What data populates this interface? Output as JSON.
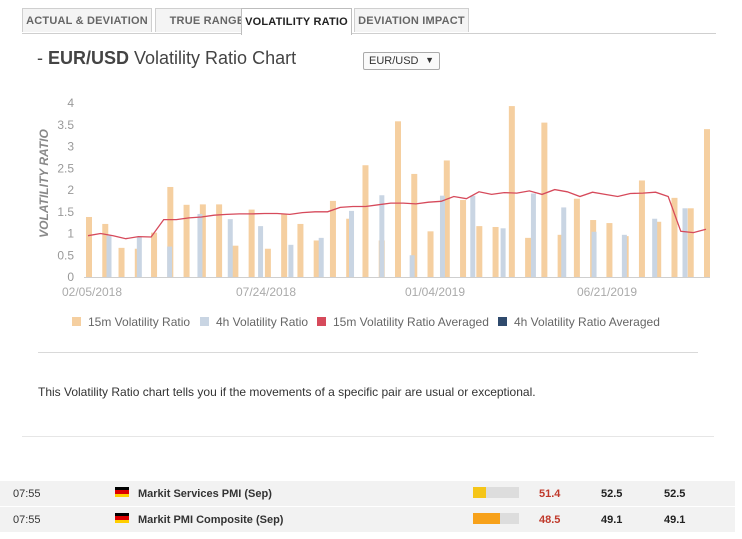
{
  "tabs": [
    {
      "label": "ACTUAL & DEVIATION",
      "active": false
    },
    {
      "label": "TRUE RANGE",
      "active": false
    },
    {
      "label": "VOLATILITY RATIO",
      "active": true
    },
    {
      "label": "DEVIATION IMPACT",
      "active": false
    }
  ],
  "header": {
    "prefix": "- ",
    "pair": "EUR/USD",
    "title_suffix": " Volatility Ratio Chart",
    "pair_select": "EUR/USD",
    "caret": "▼"
  },
  "description": "This Volatility Ratio chart tells you if the movements of a specific pair are usual or exceptional.",
  "chart_data": {
    "type": "bar",
    "ylabel": "VOLATILITY RATIO",
    "ylim": [
      0,
      4.3
    ],
    "yticks": [
      "0",
      "0.5",
      "1",
      "1.5",
      "2",
      "2.5",
      "3",
      "3.5",
      "4"
    ],
    "xtick_labels": [
      "02/05/2018",
      "07/24/2018",
      "01/04/2019",
      "06/21/2019"
    ],
    "legend": [
      {
        "name": "15m Volatility Ratio",
        "color": "#f5cfa0"
      },
      {
        "name": "4h Volatility Ratio",
        "color": "#c9d5e3"
      },
      {
        "name": "15m Volatility Ratio Averaged",
        "color": "#d64a5b"
      },
      {
        "name": "4h Volatility Ratio Averaged",
        "color": "#2f4a6d"
      }
    ],
    "series_15m": [
      1.38,
      1.22,
      0.67,
      0.65,
      1.02,
      2.07,
      1.66,
      1.67,
      1.67,
      0.72,
      1.55,
      0.65,
      1.45,
      1.22,
      0.84,
      1.75,
      1.34,
      2.57,
      0.84,
      3.58,
      2.37,
      1.05,
      2.68,
      1.77,
      1.17,
      1.15,
      3.93,
      0.9,
      3.55,
      0.97,
      1.8,
      1.31,
      1.24,
      0.94,
      2.22,
      1.27,
      1.82,
      1.58,
      3.4
    ],
    "series_4h": [
      0.95,
      0.93,
      0.7,
      1.45,
      1.33,
      1.17,
      0.74,
      0.9,
      1.52,
      1.88,
      0.5,
      1.87,
      1.87,
      1.12,
      1.92,
      1.6,
      1.04,
      0.97,
      1.34,
      1.58
    ],
    "series_avg": [
      0.95,
      1.0,
      0.95,
      0.88,
      0.93,
      0.92,
      1.32,
      1.32,
      1.36,
      1.38,
      1.42,
      1.44,
      1.45,
      1.45,
      1.46,
      1.46,
      1.44,
      1.48,
      1.5,
      1.5,
      1.6,
      1.62,
      1.62,
      1.66,
      1.7,
      1.7,
      1.68,
      1.72,
      1.74,
      1.85,
      1.8,
      1.96,
      1.9,
      1.94,
      1.93,
      1.98,
      1.9,
      2.01,
      1.96,
      1.85,
      1.95,
      1.9,
      1.85,
      1.92,
      1.93,
      1.95,
      1.85,
      1.05,
      1.02,
      1.1
    ]
  },
  "events": [
    {
      "time": "07:55",
      "name": "Markit Services PMI (Sep)",
      "impact": 0.28,
      "impact_color": "#f5c518",
      "actual": "51.4",
      "consensus": "52.5",
      "previous": "52.5"
    },
    {
      "time": "07:55",
      "name": "Markit PMI Composite (Sep)",
      "impact": 0.58,
      "impact_color": "#f7a11a",
      "actual": "48.5",
      "consensus": "49.1",
      "previous": "49.1"
    }
  ],
  "flag_colors": [
    "#000000",
    "#dd0000",
    "#ffce00"
  ]
}
